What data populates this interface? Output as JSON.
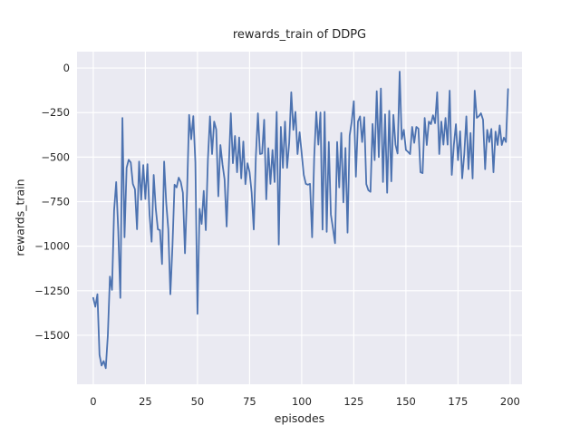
{
  "figure": {
    "title": "rewards_train of DDPG",
    "xlabel": "episodes",
    "ylabel": "rewards_train"
  },
  "chart_data": {
    "type": "line",
    "title": "rewards_train of DDPG",
    "xlabel": "episodes",
    "ylabel": "rewards_train",
    "xticks": [
      0,
      25,
      50,
      75,
      100,
      125,
      150,
      175,
      200
    ],
    "yticks": [
      0,
      -250,
      -500,
      -750,
      -1000,
      -1250,
      -1500
    ],
    "xlim": [
      -7.8,
      205.7
    ],
    "ylim": [
      -1775,
      92
    ],
    "grid": true,
    "legend": "none",
    "background": "#eaeaf2",
    "gridline_color": "#ffffff",
    "series": [
      {
        "name": "rewards_train",
        "color": "#4c72b0",
        "x0": 0,
        "dx": 1,
        "values": [
          -1290,
          -1340,
          -1270,
          -1610,
          -1670,
          -1645,
          -1685,
          -1500,
          -1170,
          -1245,
          -800,
          -640,
          -915,
          -1290,
          -280,
          -950,
          -560,
          -515,
          -530,
          -650,
          -680,
          -905,
          -525,
          -740,
          -545,
          -735,
          -540,
          -820,
          -975,
          -600,
          -790,
          -905,
          -910,
          -1100,
          -525,
          -755,
          -905,
          -1270,
          -1000,
          -655,
          -670,
          -615,
          -640,
          -700,
          -1040,
          -700,
          -263,
          -400,
          -270,
          -530,
          -1380,
          -790,
          -875,
          -690,
          -910,
          -515,
          -271,
          -483,
          -300,
          -345,
          -720,
          -432,
          -540,
          -625,
          -890,
          -560,
          -254,
          -534,
          -381,
          -585,
          -390,
          -619,
          -412,
          -652,
          -534,
          -585,
          -700,
          -906,
          -500,
          -254,
          -483,
          -480,
          -290,
          -737,
          -450,
          -650,
          -460,
          -640,
          -246,
          -991,
          -330,
          -560,
          -300,
          -560,
          -420,
          -136,
          -347,
          -246,
          -483,
          -360,
          -480,
          -600,
          -650,
          -655,
          -650,
          -950,
          -500,
          -246,
          -430,
          -250,
          -907,
          -246,
          -920,
          -415,
          -822,
          -900,
          -983,
          -415,
          -670,
          -364,
          -754,
          -449,
          -924,
          -380,
          -300,
          -186,
          -610,
          -300,
          -271,
          -415,
          -276,
          -652,
          -686,
          -695,
          -314,
          -517,
          -130,
          -500,
          -115,
          -640,
          -260,
          -700,
          -240,
          -636,
          -263,
          -430,
          -480,
          -20,
          -400,
          -347,
          -460,
          -470,
          -483,
          -330,
          -420,
          -330,
          -340,
          -585,
          -590,
          -280,
          -432,
          -300,
          -315,
          -265,
          -310,
          -136,
          -483,
          -300,
          -430,
          -280,
          -430,
          -127,
          -600,
          -432,
          -315,
          -517,
          -355,
          -619,
          -483,
          -271,
          -568,
          -365,
          -620,
          -127,
          -280,
          -270,
          -254,
          -290,
          -568,
          -347,
          -415,
          -342,
          -585,
          -356,
          -432,
          -322,
          -432,
          -391,
          -415,
          -118
        ]
      }
    ]
  }
}
